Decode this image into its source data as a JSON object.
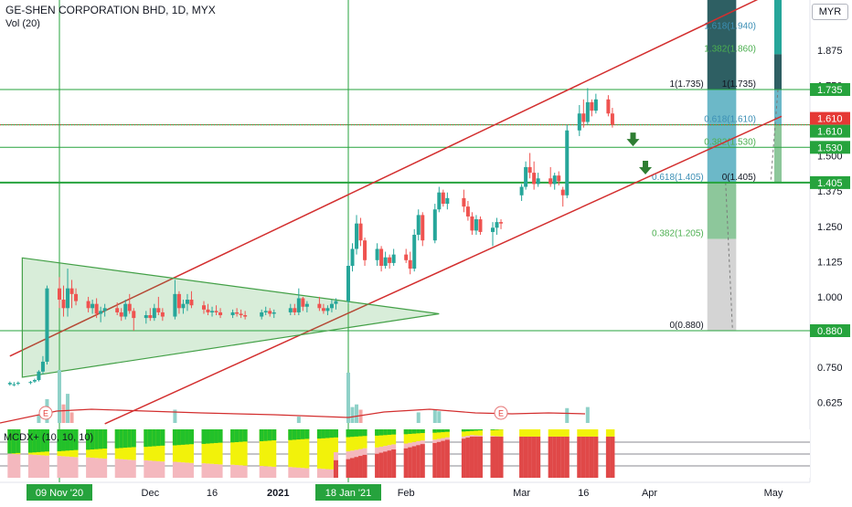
{
  "header": {
    "title": "GE-SHEN CORPORATION BHD, 1D, MYX",
    "volume_label": "Vol (20)",
    "currency": "MYR"
  },
  "indicator": {
    "label": "MCDX+ (10, 10, 10)"
  },
  "price_axis": {
    "ticks": [
      "1.875",
      "1.750",
      "1.500",
      "1.375",
      "1.250",
      "1.125",
      "1.000",
      "0.750",
      "0.625"
    ],
    "tags": [
      {
        "text": "1.735",
        "color": "#26a33d"
      },
      {
        "text": "1.610",
        "color": "#e53935"
      },
      {
        "text": "1.610",
        "color": "#26a33d"
      },
      {
        "text": "1.530",
        "color": "#26a33d"
      },
      {
        "text": "1.405",
        "color": "#26a33d"
      },
      {
        "text": "0.880",
        "color": "#26a33d"
      }
    ]
  },
  "time_axis": {
    "labels": [
      "Dec",
      "16",
      "2021",
      "Feb",
      "Mar",
      "16",
      "Apr",
      "May"
    ],
    "highlighted": [
      "09 Nov '20",
      "18 Jan '21"
    ]
  },
  "fib_labels": {
    "left": [
      "1(1.735)",
      "0.618(1.405)",
      "0.382(1.205)",
      "0(0.880)"
    ],
    "right": [
      "1.618(1.940)",
      "1.382(1.860)",
      "1(1.735)",
      "0.618(1.610)",
      "0.382(1.530)",
      "0(1.405)"
    ]
  },
  "earnings_marker": "E",
  "colors": {
    "up": "#26a69a",
    "down": "#ef5350",
    "channel": "#d32f2f",
    "hline": "#26a33d",
    "triangle": "#43a047",
    "volume_up": "#8fd1c8",
    "volume_down": "#f3a5a3",
    "mcdx_red": "#e04848",
    "mcdx_green": "#22c12a",
    "mcdx_yellow": "#f2f20a",
    "mcdx_pink": "#f4b8be"
  },
  "chart_data": {
    "type": "candlestick",
    "title": "GE-SHEN CORPORATION BHD, 1D, MYX",
    "ylabel": "MYR",
    "ylim": [
      0.55,
      1.98
    ],
    "x_start": "2020-10-28",
    "x_end": "2021-05-03",
    "candles": [
      {
        "d": "2020-10-28",
        "o": 0.69,
        "h": 0.7,
        "l": 0.685,
        "c": 0.695
      },
      {
        "d": "2020-10-29",
        "o": 0.69,
        "h": 0.698,
        "l": 0.683,
        "c": 0.69
      },
      {
        "d": "2020-10-30",
        "o": 0.692,
        "h": 0.7,
        "l": 0.687,
        "c": 0.695
      },
      {
        "d": "2020-11-02",
        "o": 0.695,
        "h": 0.702,
        "l": 0.69,
        "c": 0.698
      },
      {
        "d": "2020-11-03",
        "o": 0.7,
        "h": 0.71,
        "l": 0.695,
        "c": 0.705
      },
      {
        "d": "2020-11-04",
        "o": 0.705,
        "h": 0.74,
        "l": 0.7,
        "c": 0.735
      },
      {
        "d": "2020-11-05",
        "o": 0.735,
        "h": 0.79,
        "l": 0.725,
        "c": 0.77
      },
      {
        "d": "2020-11-06",
        "o": 0.77,
        "h": 1.04,
        "l": 0.76,
        "c": 1.03
      },
      {
        "d": "2020-11-09",
        "o": 1.03,
        "h": 1.07,
        "l": 0.96,
        "c": 0.99
      },
      {
        "d": "2020-11-10",
        "o": 0.99,
        "h": 1.04,
        "l": 0.93,
        "c": 0.96
      },
      {
        "d": "2020-11-11",
        "o": 0.96,
        "h": 1.1,
        "l": 0.93,
        "c": 1.03
      },
      {
        "d": "2020-11-12",
        "o": 1.03,
        "h": 1.06,
        "l": 0.96,
        "c": 1.01
      },
      {
        "d": "2020-11-13",
        "o": 1.01,
        "h": 1.03,
        "l": 0.97,
        "c": 0.985
      },
      {
        "d": "2020-11-16",
        "o": 0.985,
        "h": 1.0,
        "l": 0.945,
        "c": 0.96
      },
      {
        "d": "2020-11-17",
        "o": 0.96,
        "h": 0.99,
        "l": 0.94,
        "c": 0.975
      },
      {
        "d": "2020-11-18",
        "o": 0.975,
        "h": 0.995,
        "l": 0.925,
        "c": 0.94
      },
      {
        "d": "2020-11-19",
        "o": 0.94,
        "h": 0.965,
        "l": 0.91,
        "c": 0.95
      },
      {
        "d": "2020-11-20",
        "o": 0.95,
        "h": 0.975,
        "l": 0.93,
        "c": 0.96
      },
      {
        "d": "2020-11-23",
        "o": 0.96,
        "h": 0.98,
        "l": 0.935,
        "c": 0.945
      },
      {
        "d": "2020-11-24",
        "o": 0.945,
        "h": 0.96,
        "l": 0.915,
        "c": 0.93
      },
      {
        "d": "2020-11-25",
        "o": 0.93,
        "h": 0.99,
        "l": 0.92,
        "c": 0.975
      },
      {
        "d": "2020-11-26",
        "o": 0.975,
        "h": 1.01,
        "l": 0.94,
        "c": 0.95
      },
      {
        "d": "2020-11-27",
        "o": 0.95,
        "h": 0.96,
        "l": 0.88,
        "c": 0.925
      },
      {
        "d": "2020-11-30",
        "o": 0.925,
        "h": 0.95,
        "l": 0.905,
        "c": 0.935
      },
      {
        "d": "2020-12-01",
        "o": 0.935,
        "h": 0.96,
        "l": 0.915,
        "c": 0.925
      },
      {
        "d": "2020-12-02",
        "o": 0.925,
        "h": 0.975,
        "l": 0.915,
        "c": 0.96
      },
      {
        "d": "2020-12-03",
        "o": 0.96,
        "h": 1.0,
        "l": 0.935,
        "c": 0.945
      },
      {
        "d": "2020-12-04",
        "o": 0.945,
        "h": 0.96,
        "l": 0.915,
        "c": 0.93
      },
      {
        "d": "2020-12-07",
        "o": 0.93,
        "h": 1.06,
        "l": 0.92,
        "c": 1.01
      },
      {
        "d": "2020-12-08",
        "o": 1.01,
        "h": 1.02,
        "l": 0.94,
        "c": 0.96
      },
      {
        "d": "2020-12-09",
        "o": 0.96,
        "h": 0.99,
        "l": 0.94,
        "c": 0.975
      },
      {
        "d": "2020-12-10",
        "o": 0.975,
        "h": 1.01,
        "l": 0.95,
        "c": 0.99
      },
      {
        "d": "2020-12-11",
        "o": 0.99,
        "h": 1.02,
        "l": 0.96,
        "c": 0.97
      },
      {
        "d": "2020-12-14",
        "o": 0.97,
        "h": 0.985,
        "l": 0.94,
        "c": 0.955
      },
      {
        "d": "2020-12-15",
        "o": 0.955,
        "h": 0.975,
        "l": 0.935,
        "c": 0.945
      },
      {
        "d": "2020-12-16",
        "o": 0.945,
        "h": 0.965,
        "l": 0.93,
        "c": 0.95
      },
      {
        "d": "2020-12-17",
        "o": 0.95,
        "h": 0.97,
        "l": 0.935,
        "c": 0.945
      },
      {
        "d": "2020-12-18",
        "o": 0.945,
        "h": 0.96,
        "l": 0.925,
        "c": 0.935
      },
      {
        "d": "2020-12-21",
        "o": 0.935,
        "h": 0.955,
        "l": 0.925,
        "c": 0.945
      },
      {
        "d": "2020-12-22",
        "o": 0.945,
        "h": 0.96,
        "l": 0.93,
        "c": 0.94
      },
      {
        "d": "2020-12-23",
        "o": 0.94,
        "h": 0.955,
        "l": 0.925,
        "c": 0.935
      },
      {
        "d": "2020-12-24",
        "o": 0.935,
        "h": 0.95,
        "l": 0.92,
        "c": 0.93
      },
      {
        "d": "2020-12-28",
        "o": 0.93,
        "h": 0.955,
        "l": 0.92,
        "c": 0.945
      },
      {
        "d": "2020-12-29",
        "o": 0.945,
        "h": 0.965,
        "l": 0.935,
        "c": 0.95
      },
      {
        "d": "2020-12-30",
        "o": 0.95,
        "h": 0.96,
        "l": 0.93,
        "c": 0.94
      },
      {
        "d": "2020-12-31",
        "o": 0.94,
        "h": 0.955,
        "l": 0.925,
        "c": 0.945
      },
      {
        "d": "2021-01-04",
        "o": 0.945,
        "h": 0.975,
        "l": 0.935,
        "c": 0.96
      },
      {
        "d": "2021-01-05",
        "o": 0.96,
        "h": 0.975,
        "l": 0.935,
        "c": 0.945
      },
      {
        "d": "2021-01-06",
        "o": 0.945,
        "h": 1.03,
        "l": 0.935,
        "c": 0.995
      },
      {
        "d": "2021-01-07",
        "o": 0.995,
        "h": 1.0,
        "l": 0.95,
        "c": 0.965
      },
      {
        "d": "2021-01-08",
        "o": 0.965,
        "h": 0.985,
        "l": 0.945,
        "c": 0.975
      },
      {
        "d": "2021-01-11",
        "o": 0.975,
        "h": 1.0,
        "l": 0.95,
        "c": 0.96
      },
      {
        "d": "2021-01-12",
        "o": 0.96,
        "h": 0.975,
        "l": 0.94,
        "c": 0.95
      },
      {
        "d": "2021-01-13",
        "o": 0.95,
        "h": 0.97,
        "l": 0.935,
        "c": 0.96
      },
      {
        "d": "2021-01-14",
        "o": 0.96,
        "h": 0.99,
        "l": 0.945,
        "c": 0.975
      },
      {
        "d": "2021-01-15",
        "o": 0.975,
        "h": 0.995,
        "l": 0.955,
        "c": 0.985
      },
      {
        "d": "2021-01-18",
        "o": 0.985,
        "h": 1.13,
        "l": 0.975,
        "c": 1.11
      },
      {
        "d": "2021-01-19",
        "o": 1.11,
        "h": 1.19,
        "l": 1.09,
        "c": 1.17
      },
      {
        "d": "2021-01-20",
        "o": 1.17,
        "h": 1.29,
        "l": 1.15,
        "c": 1.26
      },
      {
        "d": "2021-01-21",
        "o": 1.26,
        "h": 1.28,
        "l": 1.18,
        "c": 1.2
      },
      {
        "d": "2021-01-22",
        "o": 1.2,
        "h": 1.21,
        "l": 1.11,
        "c": 1.13
      },
      {
        "d": "2021-01-25",
        "o": 1.13,
        "h": 1.19,
        "l": 1.11,
        "c": 1.17
      },
      {
        "d": "2021-01-26",
        "o": 1.17,
        "h": 1.18,
        "l": 1.09,
        "c": 1.11
      },
      {
        "d": "2021-01-27",
        "o": 1.11,
        "h": 1.16,
        "l": 1.1,
        "c": 1.14
      },
      {
        "d": "2021-01-28",
        "o": 1.14,
        "h": 1.15,
        "l": 1.1,
        "c": 1.12
      },
      {
        "d": "2021-01-29",
        "o": 1.12,
        "h": 1.17,
        "l": 1.11,
        "c": 1.15
      },
      {
        "d": "2021-02-01",
        "o": 1.15,
        "h": 1.17,
        "l": 1.12,
        "c": 1.13
      },
      {
        "d": "2021-02-02",
        "o": 1.13,
        "h": 1.16,
        "l": 1.08,
        "c": 1.1
      },
      {
        "d": "2021-02-03",
        "o": 1.1,
        "h": 1.24,
        "l": 1.09,
        "c": 1.22
      },
      {
        "d": "2021-02-04",
        "o": 1.22,
        "h": 1.31,
        "l": 1.2,
        "c": 1.29
      },
      {
        "d": "2021-02-05",
        "o": 1.29,
        "h": 1.3,
        "l": 1.18,
        "c": 1.2
      },
      {
        "d": "2021-02-08",
        "o": 1.2,
        "h": 1.33,
        "l": 1.19,
        "c": 1.31
      },
      {
        "d": "2021-02-09",
        "o": 1.31,
        "h": 1.39,
        "l": 1.3,
        "c": 1.37
      },
      {
        "d": "2021-02-10",
        "o": 1.37,
        "h": 1.38,
        "l": 1.32,
        "c": 1.33
      },
      {
        "d": "2021-02-11",
        "o": 1.33,
        "h": 1.37,
        "l": 1.31,
        "c": 1.35
      },
      {
        "d": "2021-02-15",
        "o": 1.35,
        "h": 1.38,
        "l": 1.3,
        "c": 1.32
      },
      {
        "d": "2021-02-16",
        "o": 1.32,
        "h": 1.34,
        "l": 1.27,
        "c": 1.285
      },
      {
        "d": "2021-02-17",
        "o": 1.285,
        "h": 1.3,
        "l": 1.22,
        "c": 1.235
      },
      {
        "d": "2021-02-18",
        "o": 1.235,
        "h": 1.29,
        "l": 1.22,
        "c": 1.275
      },
      {
        "d": "2021-02-19",
        "o": 1.275,
        "h": 1.285,
        "l": 1.22,
        "c": 1.23
      },
      {
        "d": "2021-02-22",
        "o": 1.23,
        "h": 1.265,
        "l": 1.18,
        "c": 1.245
      },
      {
        "d": "2021-02-23",
        "o": 1.245,
        "h": 1.28,
        "l": 1.22,
        "c": 1.265
      },
      {
        "d": "2021-02-24",
        "o": 1.265,
        "h": 1.275,
        "l": 1.24,
        "c": 1.26
      },
      {
        "d": "2021-03-01",
        "o": 1.36,
        "h": 1.4,
        "l": 1.34,
        "c": 1.39
      },
      {
        "d": "2021-03-02",
        "o": 1.39,
        "h": 1.48,
        "l": 1.38,
        "c": 1.46
      },
      {
        "d": "2021-03-03",
        "o": 1.46,
        "h": 1.51,
        "l": 1.42,
        "c": 1.44
      },
      {
        "d": "2021-03-04",
        "o": 1.44,
        "h": 1.48,
        "l": 1.38,
        "c": 1.4
      },
      {
        "d": "2021-03-05",
        "o": 1.4,
        "h": 1.44,
        "l": 1.39,
        "c": 1.42
      },
      {
        "d": "2021-03-08",
        "o": 1.42,
        "h": 1.46,
        "l": 1.39,
        "c": 1.4
      },
      {
        "d": "2021-03-09",
        "o": 1.4,
        "h": 1.44,
        "l": 1.38,
        "c": 1.43
      },
      {
        "d": "2021-03-10",
        "o": 1.43,
        "h": 1.445,
        "l": 1.395,
        "c": 1.41
      },
      {
        "d": "2021-03-11",
        "o": 1.38,
        "h": 1.39,
        "l": 1.32,
        "c": 1.36
      },
      {
        "d": "2021-03-12",
        "o": 1.36,
        "h": 1.61,
        "l": 1.35,
        "c": 1.59
      },
      {
        "d": "2021-03-15",
        "o": 1.59,
        "h": 1.68,
        "l": 1.57,
        "c": 1.65
      },
      {
        "d": "2021-03-16",
        "o": 1.65,
        "h": 1.7,
        "l": 1.6,
        "c": 1.62
      },
      {
        "d": "2021-03-17",
        "o": 1.62,
        "h": 1.74,
        "l": 1.61,
        "c": 1.69
      },
      {
        "d": "2021-03-18",
        "o": 1.69,
        "h": 1.7,
        "l": 1.64,
        "c": 1.66
      },
      {
        "d": "2021-03-19",
        "o": 1.66,
        "h": 1.72,
        "l": 1.65,
        "c": 1.7
      },
      {
        "d": "2021-03-22",
        "o": 1.7,
        "h": 1.715,
        "l": 1.64,
        "c": 1.65
      },
      {
        "d": "2021-03-23",
        "o": 1.65,
        "h": 1.67,
        "l": 1.6,
        "c": 1.61
      }
    ],
    "volume": [
      {
        "d": "2020-11-04",
        "v": 0.15,
        "dir": "up"
      },
      {
        "d": "2020-11-06",
        "v": 0.45,
        "dir": "up"
      },
      {
        "d": "2020-11-09",
        "v": 1.0,
        "dir": "up"
      },
      {
        "d": "2020-11-10",
        "v": 0.35,
        "dir": "down"
      },
      {
        "d": "2020-11-11",
        "v": 0.55,
        "dir": "up"
      },
      {
        "d": "2020-11-12",
        "v": 0.2,
        "dir": "down"
      },
      {
        "d": "2020-12-07",
        "v": 0.25,
        "dir": "up"
      },
      {
        "d": "2021-01-06",
        "v": 0.12,
        "dir": "up"
      },
      {
        "d": "2021-01-18",
        "v": 0.95,
        "dir": "up"
      },
      {
        "d": "2021-01-19",
        "v": 0.3,
        "dir": "up"
      },
      {
        "d": "2021-01-20",
        "v": 0.35,
        "dir": "up"
      },
      {
        "d": "2021-01-21",
        "v": 0.25,
        "dir": "down"
      },
      {
        "d": "2021-02-04",
        "v": 0.2,
        "dir": "up"
      },
      {
        "d": "2021-02-08",
        "v": 0.25,
        "dir": "up"
      },
      {
        "d": "2021-02-09",
        "v": 0.22,
        "dir": "up"
      },
      {
        "d": "2021-03-12",
        "v": 0.28,
        "dir": "up"
      },
      {
        "d": "2021-03-17",
        "v": 0.3,
        "dir": "up"
      }
    ],
    "horizontal_lines": [
      1.735,
      1.61,
      1.53,
      1.405,
      0.88
    ],
    "vertical_lines": [
      "2020-11-09",
      "2021-01-18"
    ],
    "channel_lines": [
      {
        "from": {
          "d": "2020-10-28",
          "v": 0.79
        },
        "to": {
          "d": "2021-05-03",
          "v": 2.095
        }
      },
      {
        "from": {
          "d": "2020-11-20",
          "v": 0.55
        },
        "to": {
          "d": "2021-05-03",
          "v": 1.64
        }
      }
    ],
    "triangle": [
      {
        "d": "2020-10-31",
        "v": 1.138
      },
      {
        "d": "2021-02-09",
        "v": 0.94
      },
      {
        "d": "2020-10-31",
        "v": 0.715
      }
    ],
    "fib_left": {
      "d0": "2021-04-15",
      "d1": "2021-04-22",
      "levels": [
        0.88,
        1.205,
        1.405,
        1.735
      ]
    },
    "fib_right": {
      "d0": "2021-04-25",
      "d1": "2021-05-03",
      "levels": [
        1.405,
        1.53,
        1.61,
        1.735,
        1.86,
        1.94
      ]
    },
    "arrows": [
      {
        "d": "2021-03-28",
        "v": 1.55,
        "direction": "down"
      },
      {
        "d": "2021-03-31",
        "v": 1.45,
        "direction": "down"
      }
    ]
  }
}
